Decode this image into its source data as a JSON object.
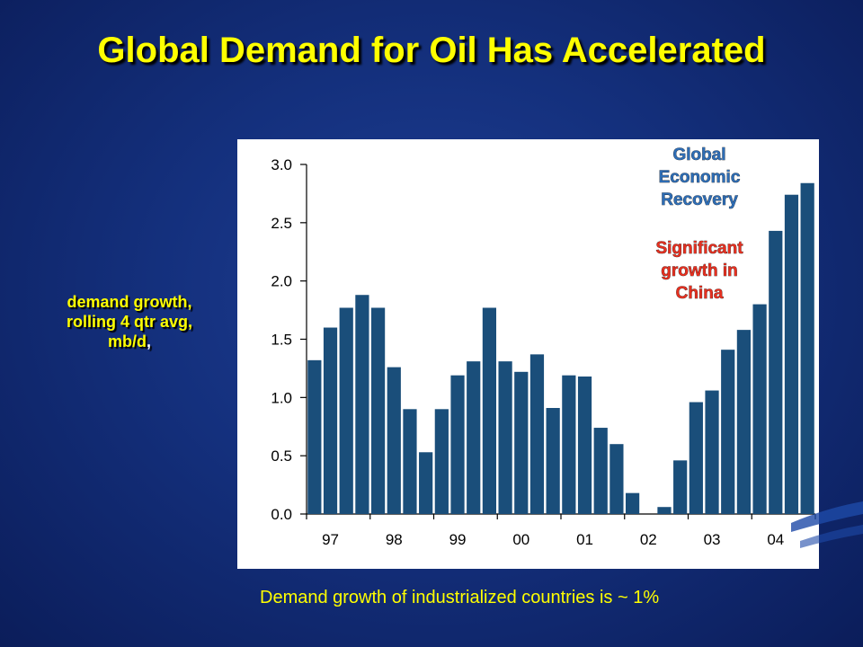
{
  "slide": {
    "title": "Global Demand for Oil Has Accelerated",
    "ylabel_line1": "demand growth,",
    "ylabel_line2": "rolling 4 qtr avg,",
    "ylabel_line3": "mb/d",
    "ylabel_suffix": ",",
    "footnote": "Demand growth of industrialized countries is ~ 1%"
  },
  "colors": {
    "bar": "#1a4e7a",
    "title": "#ffff00",
    "annotation_blue": "#2e6db5",
    "annotation_red": "#e63020"
  },
  "chart_data": {
    "type": "bar",
    "x_tick_labels": [
      "97",
      "98",
      "99",
      "00",
      "01",
      "02",
      "03",
      "04"
    ],
    "y_tick_labels": [
      "0.0",
      "0.5",
      "1.0",
      "1.5",
      "2.0",
      "2.5",
      "3.0"
    ],
    "ylim": [
      0,
      3.0
    ],
    "grid": false,
    "quarters_per_year": 4,
    "values": [
      1.32,
      1.6,
      1.77,
      1.88,
      1.77,
      1.26,
      0.9,
      0.53,
      0.9,
      1.19,
      1.31,
      1.77,
      1.31,
      1.22,
      1.37,
      0.91,
      1.19,
      1.18,
      0.74,
      0.6,
      0.18,
      0.0,
      0.06,
      0.46,
      0.96,
      1.06,
      1.41,
      1.58,
      1.8,
      2.43,
      2.74,
      2.84
    ],
    "annotations": [
      {
        "lines": [
          "Global",
          "Economic",
          "Recovery"
        ],
        "color": "#2e6db5"
      },
      {
        "lines": [
          "Significant",
          "growth in",
          "China"
        ],
        "color": "#e63020"
      }
    ]
  }
}
